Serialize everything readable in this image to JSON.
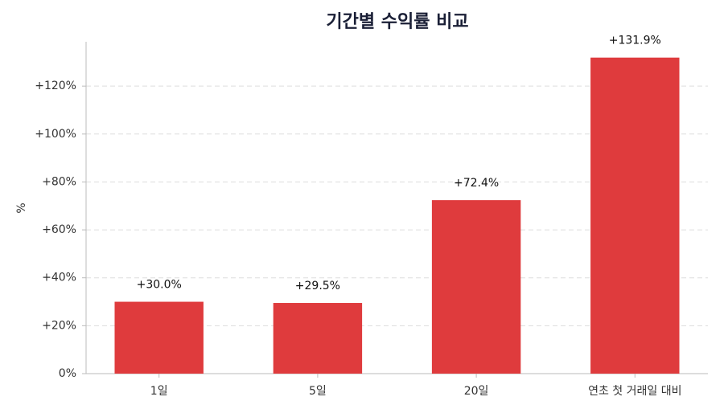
{
  "chart_data": {
    "type": "bar",
    "title": "기간별 수익률 비교",
    "y_label": "%",
    "categories": [
      "1일",
      "5일",
      "20일",
      "연초 첫 거래일 대비"
    ],
    "values": [
      30.0,
      29.5,
      72.4,
      131.9
    ],
    "value_labels": [
      "+30.0%",
      "+29.5%",
      "+72.4%",
      "+131.9%"
    ],
    "color": "#df3b3d",
    "ylim": [
      0,
      138.5
    ],
    "yticks": [
      {
        "value": 0,
        "label": "0%"
      },
      {
        "value": 20,
        "label": "+20%"
      },
      {
        "value": 40,
        "label": "+40%"
      },
      {
        "value": 60,
        "label": "+60%"
      },
      {
        "value": 80,
        "label": "+80%"
      },
      {
        "value": 100,
        "label": "+100%"
      },
      {
        "value": 120,
        "label": "+120%"
      }
    ],
    "grid": true
  }
}
